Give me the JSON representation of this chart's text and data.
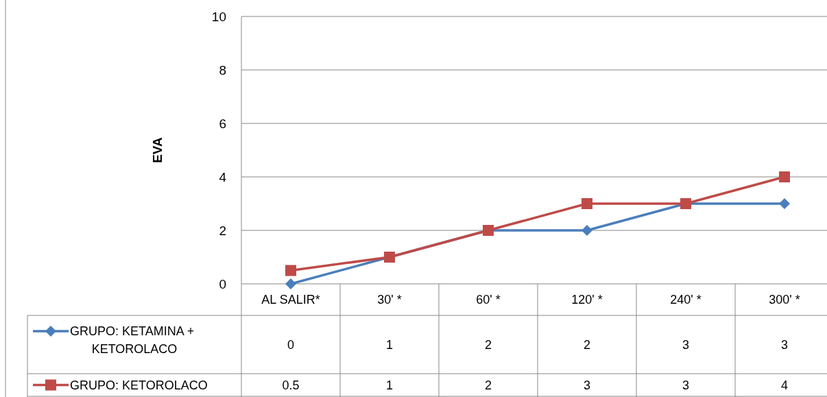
{
  "chart_data": {
    "type": "line",
    "ylabel": "EVA",
    "categories": [
      "AL SALIR*",
      "30' *",
      "60' *",
      "120' *",
      "240' *",
      "300' *"
    ],
    "series": [
      {
        "name": "GRUPO: KETAMINA + KETOROLACO",
        "color": "#4a7ebb",
        "marker": "diamond",
        "values": [
          0,
          1,
          2,
          2,
          3,
          3
        ]
      },
      {
        "name": "GRUPO: KETOROLACO",
        "color": "#be4b48",
        "marker": "square",
        "values": [
          0.5,
          1,
          2,
          3,
          3,
          4
        ]
      }
    ],
    "ylim": [
      0,
      10
    ],
    "yticks": [
      0,
      2,
      4,
      6,
      8,
      10
    ],
    "grid": "y",
    "legend": "bottom",
    "data_labels": true
  }
}
